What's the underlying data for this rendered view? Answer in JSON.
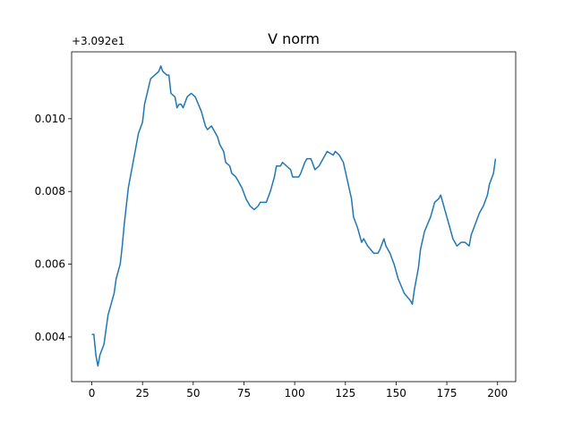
{
  "chart_data": {
    "type": "line",
    "title": "V norm",
    "y_offset_label": "+3.092e1",
    "x": [
      0,
      1,
      2,
      3,
      4,
      6,
      7,
      8,
      11,
      12,
      14,
      15,
      16,
      18,
      20,
      22,
      23,
      25,
      26,
      29,
      31,
      33,
      34,
      35,
      37,
      38,
      39,
      41,
      42,
      43,
      44,
      45,
      47,
      49,
      51,
      54,
      56,
      57,
      59,
      61,
      62,
      63,
      65,
      66,
      68,
      69,
      71,
      74,
      76,
      78,
      80,
      82,
      83,
      86,
      88,
      90,
      91,
      93,
      94,
      96,
      98,
      99,
      101,
      102,
      103,
      105,
      106,
      108,
      110,
      112,
      114,
      116,
      119,
      120,
      122,
      124,
      126,
      128,
      129,
      131,
      133,
      134,
      136,
      139,
      141,
      142,
      144,
      145,
      147,
      149,
      151,
      154,
      157,
      158,
      159,
      161,
      162,
      164,
      167,
      169,
      171,
      172,
      174,
      176,
      178,
      180,
      182,
      184,
      186,
      187,
      189,
      191,
      193,
      195,
      196,
      198,
      199
    ],
    "series": [
      {
        "color": "#1f77b4",
        "values": [
          0.00407,
          0.00407,
          0.0035,
          0.0032,
          0.0035,
          0.0038,
          0.0042,
          0.0046,
          0.0052,
          0.0056,
          0.006,
          0.0065,
          0.0071,
          0.0081,
          0.0087,
          0.0093,
          0.0096,
          0.0099,
          0.0104,
          0.0111,
          0.0112,
          0.0113,
          0.01145,
          0.0113,
          0.0112,
          0.0112,
          0.0107,
          0.0106,
          0.0103,
          0.0104,
          0.0104,
          0.0103,
          0.0106,
          0.0107,
          0.0106,
          0.0102,
          0.0098,
          0.0097,
          0.0098,
          0.0096,
          0.0095,
          0.0093,
          0.0091,
          0.0088,
          0.0087,
          0.0085,
          0.0084,
          0.0081,
          0.0078,
          0.0076,
          0.0075,
          0.0076,
          0.0077,
          0.0077,
          0.008,
          0.0084,
          0.0087,
          0.0087,
          0.0088,
          0.0087,
          0.0086,
          0.0084,
          0.0084,
          0.0084,
          0.0085,
          0.0088,
          0.0089,
          0.0089,
          0.0086,
          0.0087,
          0.0089,
          0.0091,
          0.009,
          0.0091,
          0.009,
          0.0088,
          0.0083,
          0.0078,
          0.0073,
          0.007,
          0.0066,
          0.0067,
          0.0065,
          0.0063,
          0.0063,
          0.0064,
          0.0067,
          0.0065,
          0.0063,
          0.006,
          0.0056,
          0.0052,
          0.005,
          0.0049,
          0.0053,
          0.0059,
          0.0064,
          0.0069,
          0.0073,
          0.0077,
          0.0078,
          0.0079,
          0.0075,
          0.0071,
          0.0067,
          0.0065,
          0.0066,
          0.0066,
          0.0065,
          0.0068,
          0.0071,
          0.0074,
          0.0076,
          0.0079,
          0.0082,
          0.0085,
          0.0089
        ]
      }
    ],
    "xlim": [
      -9.95,
      208.95
    ],
    "xticks": [
      0,
      25,
      50,
      75,
      100,
      125,
      150,
      175,
      200
    ],
    "ylim": [
      0.00277,
      0.01184
    ],
    "yticks": [
      0.004,
      0.006,
      0.008,
      {
        "value": 0.01,
        "label": "0.010"
      }
    ],
    "grid": false
  }
}
